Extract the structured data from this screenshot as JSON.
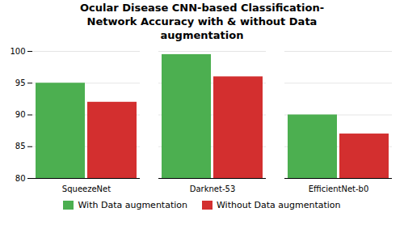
{
  "chart_data": {
    "type": "bar",
    "title": "Ocular Disease CNN-based Classification-\nNetwork Accuracy with & without Data\naugmentation",
    "categories": [
      "SqueezeNet",
      "Darknet-53",
      "EfficientNet-b0"
    ],
    "series": [
      {
        "name": "With Data augmentation",
        "color": "#4caf50",
        "values": [
          95,
          99.5,
          90
        ]
      },
      {
        "name": "Without Data augmentation",
        "color": "#d32f2f",
        "values": [
          92,
          96,
          87
        ]
      }
    ],
    "ylim": [
      80,
      100
    ],
    "yticks": [
      80,
      85,
      90,
      95,
      100
    ],
    "grid": true,
    "legend": "bottom"
  }
}
